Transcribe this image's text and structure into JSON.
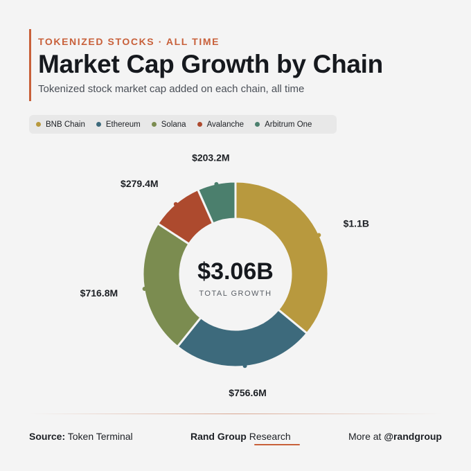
{
  "header": {
    "kicker": "TOKENIZED STOCKS · ALL TIME",
    "title": "Market Cap Growth by Chain",
    "subtitle": "Tokenized stock market cap added on each chain, all time"
  },
  "chart_data": {
    "type": "pie",
    "variant": "donut",
    "title": "Market Cap Growth by Chain",
    "categories": [
      "BNB Chain",
      "Ethereum",
      "Solana",
      "Avalanche",
      "Arbitrum One"
    ],
    "values": [
      1.1,
      0.7566,
      0.7168,
      0.2794,
      0.2032
    ],
    "units": "USD billions",
    "data_labels": [
      "$1.1B",
      "$756.6M",
      "$716.8M",
      "$279.4M",
      "$203.2M"
    ],
    "colors": [
      "#b8993e",
      "#3d6a7c",
      "#7b8c50",
      "#ad4a2e",
      "#4b7f6d"
    ],
    "center_value": "$3.06B",
    "center_label": "TOTAL GROWTH",
    "legend_position": "top"
  },
  "footer": {
    "source_label": "Source:",
    "source_value": "Token Terminal",
    "brand_name": "Rand Group",
    "brand_suffix": "Research",
    "more_label": "More at",
    "handle": "@randgroup"
  }
}
